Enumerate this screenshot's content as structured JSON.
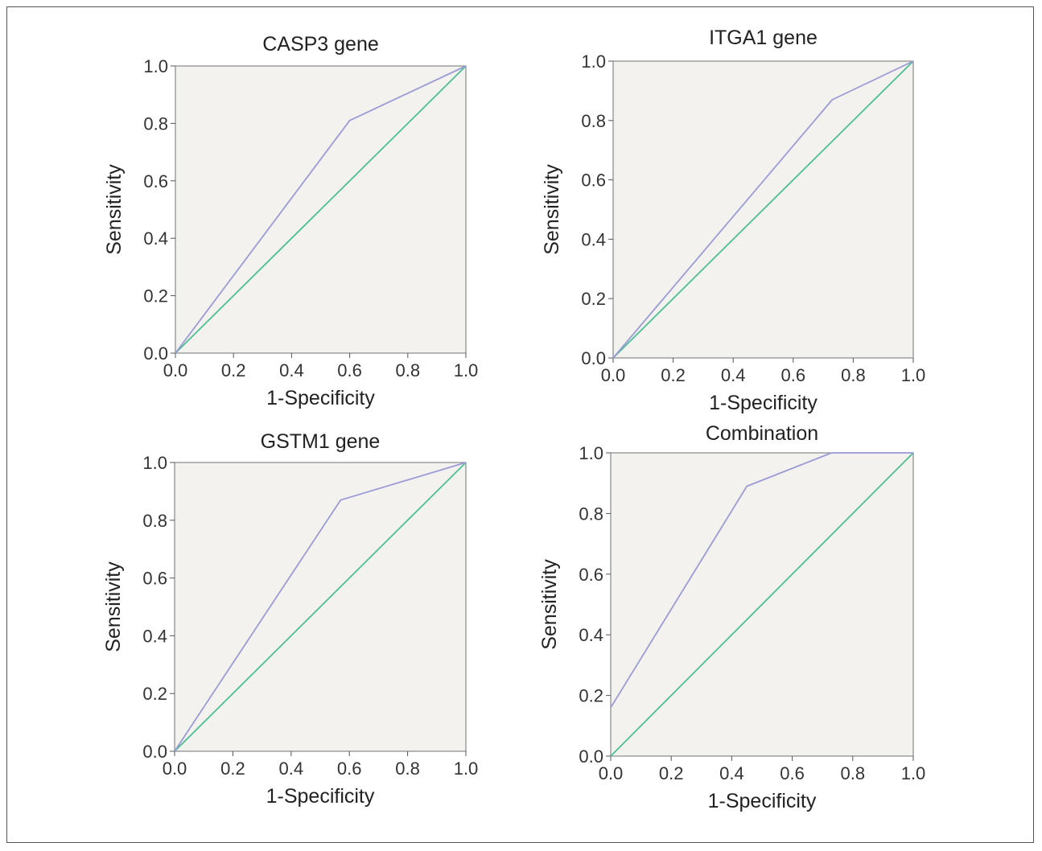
{
  "chart_data": [
    {
      "type": "line",
      "title": "CASP3 gene",
      "xlabel": "1-Specificity",
      "ylabel": "Sensitivity",
      "xlim": [
        0,
        1
      ],
      "ylim": [
        0,
        1
      ],
      "x_ticks": [
        "0.0",
        "0.2",
        "0.4",
        "0.6",
        "0.8",
        "1.0"
      ],
      "y_ticks": [
        "0.0",
        "0.2",
        "0.4",
        "0.6",
        "0.8",
        "1.0"
      ],
      "grid": false,
      "series": [
        {
          "color": "#9b9bd6",
          "points": [
            [
              0,
              0
            ],
            [
              0.6,
              0.81
            ],
            [
              1,
              1
            ]
          ]
        },
        {
          "color": "#4dbf94",
          "points": [
            [
              0,
              0
            ],
            [
              1,
              1
            ]
          ]
        }
      ]
    },
    {
      "type": "line",
      "title": "ITGA1 gene",
      "xlabel": "1-Specificity",
      "ylabel": "Sensitivity",
      "xlim": [
        0,
        1
      ],
      "ylim": [
        0,
        1
      ],
      "x_ticks": [
        "0.0",
        "0.2",
        "0.4",
        "0.6",
        "0.8",
        "1.0"
      ],
      "y_ticks": [
        "0.0",
        "0.2",
        "0.4",
        "0.6",
        "0.8",
        "1.0"
      ],
      "grid": false,
      "series": [
        {
          "color": "#9b9bd6",
          "points": [
            [
              0,
              0
            ],
            [
              0.73,
              0.87
            ],
            [
              1,
              1
            ]
          ]
        },
        {
          "color": "#4dbf94",
          "points": [
            [
              0,
              0
            ],
            [
              1,
              1
            ]
          ]
        }
      ]
    },
    {
      "type": "line",
      "title": "GSTM1 gene",
      "xlabel": "1-Specificity",
      "ylabel": "Sensitivity",
      "xlim": [
        0,
        1
      ],
      "ylim": [
        0,
        1
      ],
      "x_ticks": [
        "0.0",
        "0.2",
        "0.4",
        "0.6",
        "0.8",
        "1.0"
      ],
      "y_ticks": [
        "0.0",
        "0.2",
        "0.4",
        "0.6",
        "0.8",
        "1.0"
      ],
      "grid": false,
      "series": [
        {
          "color": "#9b9bd6",
          "points": [
            [
              0,
              0
            ],
            [
              0.57,
              0.87
            ],
            [
              1,
              1
            ]
          ]
        },
        {
          "color": "#4dbf94",
          "points": [
            [
              0,
              0
            ],
            [
              1,
              1
            ]
          ]
        }
      ]
    },
    {
      "type": "line",
      "title": "Combination",
      "xlabel": "1-Specificity",
      "ylabel": "Sensitivity",
      "xlim": [
        0,
        1
      ],
      "ylim": [
        0,
        1
      ],
      "x_ticks": [
        "0.0",
        "0.2",
        "0.4",
        "0.6",
        "0.8",
        "1.0"
      ],
      "y_ticks": [
        "0.0",
        "0.2",
        "0.4",
        "0.6",
        "0.8",
        "1.0"
      ],
      "grid": false,
      "series": [
        {
          "color": "#9b9bd6",
          "points": [
            [
              0,
              0.16
            ],
            [
              0.45,
              0.89
            ],
            [
              0.73,
              1
            ],
            [
              1,
              1
            ]
          ]
        },
        {
          "color": "#4dbf94",
          "points": [
            [
              0,
              0
            ],
            [
              1,
              1
            ]
          ]
        }
      ]
    }
  ],
  "colors": {
    "plot_background": "#f3f2ef",
    "plot_border": "#888888",
    "roc_curve": "#9b9bd6",
    "reference_line": "#4dbf94"
  }
}
